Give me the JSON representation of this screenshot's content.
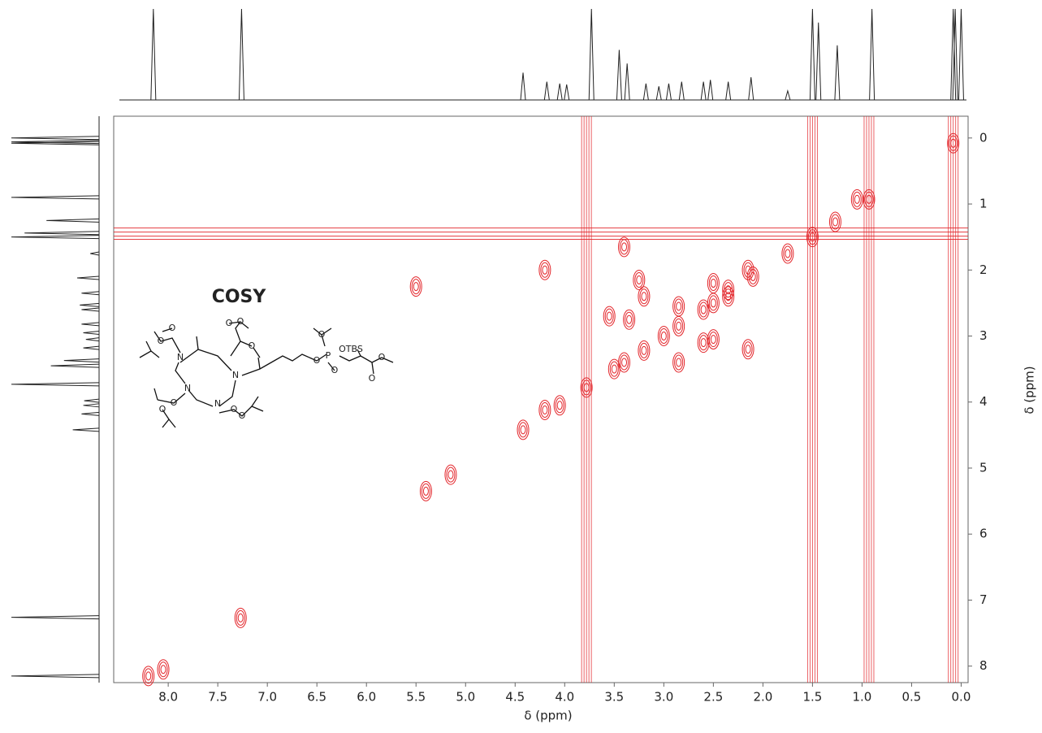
{
  "chart_data": {
    "type": "cosy",
    "title": "COSY",
    "x_label": "δ (ppm)",
    "y_label": "δ (ppm)",
    "xlim": [
      8.55,
      -0.07
    ],
    "ylim": [
      -0.33,
      8.25
    ],
    "xticks": [
      {
        "value": 8,
        "label": "8.0"
      },
      7.5,
      {
        "value": 7,
        "label": "7.0"
      },
      6.5,
      {
        "value": 6,
        "label": "6.0"
      },
      5.5,
      {
        "value": 5,
        "label": "5.0"
      },
      4.5,
      {
        "value": 4,
        "label": "4.0"
      },
      3.5,
      {
        "value": 3,
        "label": "3.0"
      },
      2.5,
      {
        "value": 2,
        "label": "2.0"
      },
      1.5,
      {
        "value": 1,
        "label": "1.0"
      },
      0.5,
      {
        "value": 0,
        "label": "0.0"
      }
    ],
    "yticks": [
      0,
      1,
      2,
      3,
      4,
      5,
      6,
      7,
      8
    ],
    "color": "#e3262b",
    "peaks": {
      "x": [
        8.2,
        7.27,
        4.42,
        4.2,
        4.05,
        3.78,
        3.5,
        3.4,
        3.2,
        3.0,
        2.85,
        2.6,
        2.5,
        2.35,
        2.1,
        1.75,
        1.5,
        1.27,
        0.93,
        0.08,
        3.55,
        3.35,
        3.25,
        3.2,
        2.85,
        2.85,
        2.6,
        2.5,
        2.15,
        4.2,
        3.4,
        2.5,
        2.35,
        2.15,
        1.05,
        5.15,
        5.4,
        5.5,
        8.05
      ],
      "y": [
        8.15,
        7.27,
        4.42,
        4.12,
        4.05,
        3.78,
        3.5,
        3.4,
        3.22,
        3.0,
        2.85,
        2.6,
        2.5,
        2.4,
        2.1,
        1.75,
        1.5,
        1.27,
        0.93,
        0.08,
        2.7,
        2.75,
        2.15,
        2.4,
        3.4,
        2.55,
        3.1,
        3.05,
        3.2,
        2.0,
        1.65,
        2.2,
        2.3,
        2.0,
        0.93,
        5.1,
        5.35,
        2.25,
        8.05
      ]
    },
    "streaks_x": [
      3.78,
      1.5,
      0.93,
      0.08
    ],
    "streaks_y": [
      1.45
    ],
    "projection": {
      "x": [
        8.15,
        7.26,
        4.42,
        4.18,
        4.05,
        3.98,
        3.73,
        3.45,
        3.37,
        3.18,
        3.05,
        2.95,
        2.82,
        2.6,
        2.53,
        2.35,
        2.12,
        1.75,
        1.5,
        1.44,
        1.25,
        0.9,
        0.08,
        0.06,
        0.0
      ],
      "heights": [
        100,
        100,
        30,
        20,
        18,
        17,
        100,
        55,
        40,
        18,
        15,
        18,
        20,
        20,
        22,
        20,
        25,
        10,
        100,
        85,
        60,
        100,
        100,
        100,
        100
      ]
    },
    "structure_atoms": [
      "N",
      "N",
      "N",
      "N",
      "O",
      "O",
      "O",
      "O",
      "O",
      "O",
      "O",
      "O",
      "O",
      "P",
      "O",
      "O",
      "O",
      "OTBS",
      "O",
      "O"
    ]
  }
}
